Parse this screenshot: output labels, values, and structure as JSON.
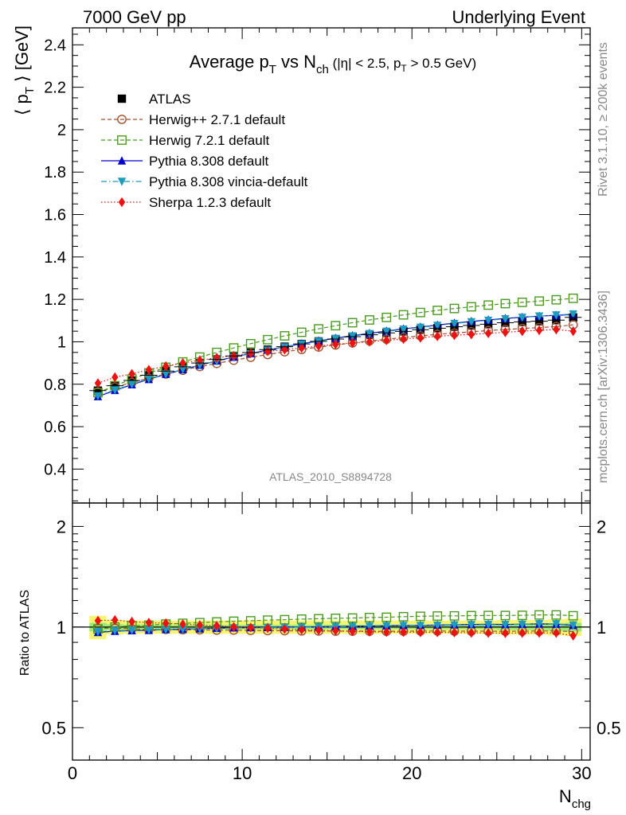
{
  "header": {
    "left": "7000 GeV pp",
    "right": "Underlying Event"
  },
  "side_text": {
    "rivet": "Rivet 3.1.10, ≥ 200k events",
    "mcplots": "mcplots.cern.ch [arXiv:1306.3436]"
  },
  "watermark": "ATLAS_2010_S8894728",
  "chart_data": [
    {
      "type": "scatter",
      "title": "Average p_T vs N_ch (|η| < 2.5, p_T > 0.5 GeV)",
      "xlabel": "N_chg",
      "ylabel": "⟨ p_T ⟩ [GeV]",
      "xlim": [
        0,
        30.5
      ],
      "ylim": [
        0.24,
        2.48
      ],
      "y_ticks": [
        0.4,
        0.6,
        0.8,
        1.0,
        1.2,
        1.4,
        1.6,
        1.8,
        2.0,
        2.2,
        2.4
      ],
      "y_tick_labels": [
        "0.4",
        "0.6",
        "0.8",
        "1",
        "1.2",
        "1.4",
        "1.6",
        "1.8",
        "2",
        "2.2",
        "2.4"
      ],
      "x_ticks": [
        0,
        10,
        20,
        30
      ],
      "x_tick_labels": [
        "0",
        "10",
        "20",
        "30"
      ],
      "grid": false,
      "legend_position": "top-left",
      "x": [
        1.5,
        2.5,
        3.5,
        4.5,
        5.5,
        6.5,
        7.5,
        8.5,
        9.5,
        10.5,
        11.5,
        12.5,
        13.5,
        14.5,
        15.5,
        16.5,
        17.5,
        18.5,
        19.5,
        20.5,
        21.5,
        22.5,
        23.5,
        24.5,
        25.5,
        26.5,
        27.5,
        28.5,
        29.5
      ],
      "series": [
        {
          "name": "ATLAS",
          "color": "#000000",
          "marker": "filled-square",
          "line": "none",
          "values": [
            0.77,
            0.793,
            0.818,
            0.842,
            0.862,
            0.882,
            0.9,
            0.917,
            0.933,
            0.949,
            0.963,
            0.977,
            0.99,
            1.002,
            1.013,
            1.024,
            1.033,
            1.042,
            1.049,
            1.057,
            1.064,
            1.071,
            1.077,
            1.083,
            1.09,
            1.094,
            1.097,
            1.102,
            1.115
          ]
        },
        {
          "name": "Herwig++ 2.7.1 default",
          "color": "#a0522d",
          "marker": "open-circle",
          "line": "dashed",
          "values": [
            0.763,
            0.787,
            0.808,
            0.828,
            0.848,
            0.866,
            0.883,
            0.898,
            0.913,
            0.927,
            0.94,
            0.953,
            0.964,
            0.975,
            0.985,
            0.995,
            1.004,
            1.012,
            1.02,
            1.028,
            1.035,
            1.041,
            1.047,
            1.053,
            1.058,
            1.063,
            1.067,
            1.072,
            1.08
          ]
        },
        {
          "name": "Herwig 7.2.1 default",
          "color": "#4a9a1e",
          "marker": "open-square",
          "line": "dashed",
          "values": [
            0.76,
            0.793,
            0.825,
            0.853,
            0.88,
            0.905,
            0.928,
            0.95,
            0.971,
            0.991,
            1.01,
            1.028,
            1.045,
            1.061,
            1.076,
            1.09,
            1.103,
            1.115,
            1.127,
            1.138,
            1.148,
            1.157,
            1.165,
            1.173,
            1.18,
            1.186,
            1.192,
            1.198,
            1.205
          ]
        },
        {
          "name": "Pythia 8.308 default",
          "color": "#0000cc",
          "marker": "filled-triangle-up",
          "line": "solid",
          "values": [
            0.742,
            0.771,
            0.798,
            0.823,
            0.847,
            0.869,
            0.89,
            0.91,
            0.928,
            0.945,
            0.961,
            0.976,
            0.991,
            1.004,
            1.017,
            1.029,
            1.04,
            1.051,
            1.061,
            1.07,
            1.079,
            1.088,
            1.096,
            1.103,
            1.11,
            1.116,
            1.121,
            1.125,
            1.128
          ]
        },
        {
          "name": "Pythia 8.308 vincia-default",
          "color": "#1e9bbf",
          "marker": "filled-triangle-down",
          "line": "dashdot",
          "values": [
            0.745,
            0.773,
            0.8,
            0.825,
            0.848,
            0.87,
            0.89,
            0.909,
            0.927,
            0.944,
            0.96,
            0.975,
            0.989,
            1.002,
            1.015,
            1.027,
            1.038,
            1.049,
            1.059,
            1.068,
            1.077,
            1.086,
            1.094,
            1.101,
            1.108,
            1.115,
            1.121,
            1.126,
            1.131
          ]
        },
        {
          "name": "Sherpa 1.2.3 default",
          "color": "#ee1111",
          "marker": "filled-diamond",
          "line": "dotted",
          "values": [
            0.805,
            0.833,
            0.849,
            0.868,
            0.885,
            0.9,
            0.913,
            0.925,
            0.934,
            0.946,
            0.955,
            0.963,
            0.971,
            0.98,
            0.988,
            0.994,
            1.0,
            1.007,
            1.013,
            1.019,
            1.026,
            1.031,
            1.035,
            1.04,
            1.045,
            1.05,
            1.054,
            1.058,
            1.05
          ]
        }
      ]
    },
    {
      "type": "scatter",
      "title": "",
      "xlabel": "N_chg",
      "ylabel": "Ratio to ATLAS",
      "xlim": [
        0,
        30.5
      ],
      "ylim": [
        0.4,
        2.35
      ],
      "y_scale": "log",
      "y_ticks": [
        0.5,
        1,
        2
      ],
      "y_tick_labels": [
        "0.5",
        "1",
        "2"
      ],
      "x_ticks": [
        0,
        10,
        20,
        30
      ],
      "x_tick_labels": [
        "0",
        "10",
        "20",
        "30"
      ],
      "reference_line": 1,
      "uncertainty_band": {
        "x": [
          1.5,
          2.5,
          3.5,
          4.5,
          5.5,
          6.5,
          7.5,
          8.5,
          9.5,
          10.5,
          11.5,
          12.5,
          13.5,
          14.5,
          15.5,
          16.5,
          17.5,
          18.5,
          19.5,
          20.5,
          21.5,
          22.5,
          23.5,
          24.5,
          25.5,
          26.5,
          27.5,
          28.5,
          29.5
        ],
        "outer": [
          0.08,
          0.05,
          0.045,
          0.045,
          0.045,
          0.045,
          0.045,
          0.045,
          0.045,
          0.045,
          0.045,
          0.045,
          0.045,
          0.045,
          0.045,
          0.045,
          0.045,
          0.045,
          0.045,
          0.045,
          0.045,
          0.045,
          0.045,
          0.045,
          0.05,
          0.05,
          0.05,
          0.055,
          0.06
        ],
        "inner": [
          0.03,
          0.02,
          0.015,
          0.015,
          0.015,
          0.015,
          0.015,
          0.015,
          0.015,
          0.015,
          0.015,
          0.015,
          0.015,
          0.015,
          0.015,
          0.015,
          0.015,
          0.015,
          0.015,
          0.015,
          0.015,
          0.015,
          0.015,
          0.015,
          0.02,
          0.02,
          0.02,
          0.025,
          0.03
        ]
      },
      "series": [
        {
          "name": "Herwig++ 2.7.1 default",
          "values": [
            0.991,
            0.992,
            0.988,
            0.983,
            0.984,
            0.982,
            0.981,
            0.979,
            0.979,
            0.977,
            0.976,
            0.975,
            0.974,
            0.973,
            0.972,
            0.972,
            0.972,
            0.971,
            0.972,
            0.973,
            0.973,
            0.972,
            0.972,
            0.972,
            0.971,
            0.972,
            0.973,
            0.973,
            0.969
          ]
        },
        {
          "name": "Herwig 7.2.1 default",
          "values": [
            0.987,
            1.0,
            1.009,
            1.013,
            1.021,
            1.026,
            1.031,
            1.036,
            1.041,
            1.044,
            1.049,
            1.052,
            1.056,
            1.059,
            1.062,
            1.064,
            1.068,
            1.07,
            1.074,
            1.077,
            1.079,
            1.08,
            1.082,
            1.083,
            1.083,
            1.084,
            1.087,
            1.087,
            1.081
          ]
        },
        {
          "name": "Pythia 8.308 default",
          "values": [
            0.964,
            0.972,
            0.976,
            0.978,
            0.983,
            0.985,
            0.989,
            0.992,
            0.995,
            0.996,
            0.998,
            0.999,
            1.001,
            1.002,
            1.004,
            1.005,
            1.007,
            1.009,
            1.011,
            1.012,
            1.014,
            1.016,
            1.018,
            1.019,
            1.018,
            1.02,
            1.022,
            1.021,
            1.012
          ]
        },
        {
          "name": "Pythia 8.308 vincia-default",
          "values": [
            0.968,
            0.975,
            0.978,
            0.98,
            0.984,
            0.986,
            0.989,
            0.991,
            0.994,
            0.995,
            0.997,
            0.998,
            0.999,
            1.0,
            1.002,
            1.003,
            1.005,
            1.007,
            1.01,
            1.01,
            1.012,
            1.014,
            1.016,
            1.017,
            1.017,
            1.019,
            1.022,
            1.022,
            1.014
          ]
        },
        {
          "name": "Sherpa 1.2.3 default",
          "values": [
            1.045,
            1.05,
            1.038,
            1.031,
            1.027,
            1.02,
            1.014,
            1.009,
            1.001,
            0.997,
            0.992,
            0.986,
            0.981,
            0.978,
            0.975,
            0.971,
            0.968,
            0.966,
            0.966,
            0.964,
            0.964,
            0.963,
            0.961,
            0.96,
            0.959,
            0.96,
            0.961,
            0.96,
            0.942
          ]
        }
      ]
    }
  ]
}
